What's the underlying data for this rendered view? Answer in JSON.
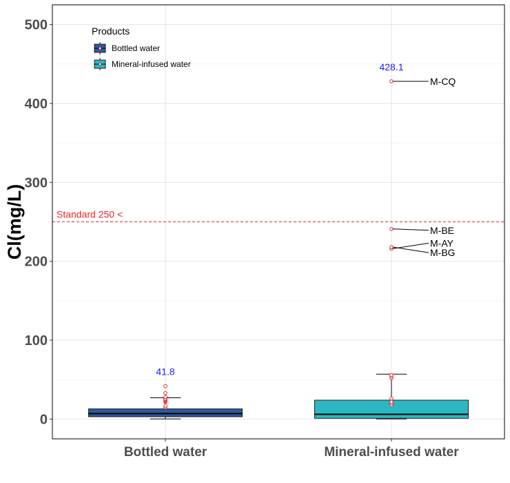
{
  "chart_data": {
    "type": "box",
    "ylabel": "Cl(mg/L)",
    "ylim": [
      -25,
      525
    ],
    "yticks": [
      0,
      100,
      200,
      300,
      400,
      500
    ],
    "categories": [
      "Bottled water",
      "Mineral-infused water"
    ],
    "grid": true,
    "legend": {
      "title": "Products",
      "position": "top-left",
      "entries": [
        {
          "name": "Bottled water",
          "color": "#2e5a9e"
        },
        {
          "name": "Mineral-infused water",
          "color": "#2cb7c2"
        }
      ]
    },
    "series": [
      {
        "name": "Bottled water",
        "color": "#2e5a9e",
        "whisker_low": 0.3,
        "q1": 3,
        "median": 7,
        "q3": 13,
        "whisker_high": 27,
        "outliers": [
          15,
          17,
          22,
          23,
          24,
          25,
          26,
          28,
          33,
          41.8
        ],
        "max_label": "41.8"
      },
      {
        "name": "Mineral-infused water",
        "color": "#2cb7c2",
        "whisker_low": 0.3,
        "q1": 1,
        "median": 6,
        "q3": 24,
        "whisker_high": 57,
        "outliers": [
          18,
          20,
          22,
          26,
          52,
          54,
          56,
          216,
          218,
          241,
          428.1
        ],
        "max_label": "428.1",
        "labelled_outliers": [
          {
            "value": 428.1,
            "label": "M-CQ"
          },
          {
            "value": 241,
            "label": "M-BE"
          },
          {
            "value": 218,
            "label": "M-BG"
          },
          {
            "value": 216,
            "label": "M-AY"
          }
        ]
      }
    ],
    "reference_line": {
      "value": 250,
      "label": "Standard 250 <",
      "color": "#e8252a",
      "style": "dashed"
    },
    "annotation_color": "#1a1aff",
    "outlier_color": "#e8252a"
  }
}
